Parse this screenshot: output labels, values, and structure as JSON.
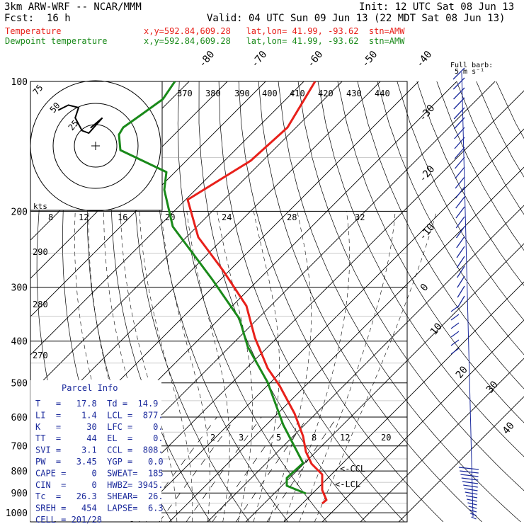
{
  "header": {
    "title": "3km ARW-WRF -- NCAR/MMM",
    "init": "Init: 12 UTC Sat 08 Jun 13",
    "fcst_label": "Fcst:",
    "fcst_value": "16 h",
    "valid": "Valid: 04 UTC Sun 09 Jun 13 (22 MDT Sat 08 Jun 13)"
  },
  "legend": [
    {
      "name": "Temperature",
      "loc": "x,y=592.84,609.28   lat,lon= 41.99, -93.62  stn=AMW",
      "color": "#e8201a"
    },
    {
      "name": "Dewpoint temperature",
      "loc": "x,y=592.84,609.28   lat,lon= 41.99, -93.62  stn=AMW",
      "color": "#1a8a1a"
    }
  ],
  "barb_key": {
    "line1": "Full barb:",
    "line2": "5 m s⁻¹"
  },
  "parcel_info": {
    "title": "Parcel Info",
    "rows": [
      "T   =   17.8  Td =  14.9",
      "LI  =    1.4  LCL =  877.",
      "K   =     30  LFC =    0.",
      "TT  =     44  EL  =    0.",
      "SVI =    3.1  CCL =  808.",
      "PW  =   3.45  YGP =   0.0",
      "CAPE =     0  SWEAT=  185",
      "CIN  =     0  HWBZ= 3945.",
      "Tc  =   26.3  SHEAR=  26.",
      "SREH =   454  LAPSE=  6.3",
      "CELL = 201/28"
    ]
  },
  "markers": {
    "ccl": "<-CCL",
    "lcl": "<-LCL"
  },
  "hodograph": {
    "speed_unit": "kts",
    "ring_labels": [
      "25",
      "50",
      "75"
    ]
  },
  "chart_data": {
    "type": "line",
    "subtype": "skew-T log-P diagram",
    "pressure_axis_hPa": [
      100,
      200,
      300,
      400,
      500,
      600,
      700,
      800,
      900,
      1000
    ],
    "pressure_tick_labels": [
      "100",
      "200",
      "300",
      "400",
      "500",
      "600",
      "700",
      "800",
      "900",
      "1000"
    ],
    "isotherm_labels_C": [
      "-80",
      "-70",
      "-60",
      "-50",
      "-40",
      "-30",
      "-20",
      "-10",
      "0",
      "10",
      "20",
      "30",
      "40"
    ],
    "theta_labels_K": [
      "370",
      "380",
      "390",
      "400",
      "410",
      "420",
      "430",
      "440"
    ],
    "dry_adiabat_labels_K": [
      "290",
      "280",
      "270"
    ],
    "wet_bulb_labels_C": [
      "8",
      "12",
      "16",
      "20",
      "24",
      "28",
      "32"
    ],
    "mixing_ratio_labels_gkg": [
      "2",
      "3",
      "5",
      "8",
      "12",
      "20"
    ],
    "series": [
      {
        "name": "Temperature",
        "color": "#e8201a",
        "points": [
          [
            100,
            -61
          ],
          [
            150,
            -56
          ],
          [
            180,
            -58
          ],
          [
            200,
            -55
          ],
          [
            250,
            -47
          ],
          [
            300,
            -38
          ],
          [
            350,
            -26
          ],
          [
            400,
            -18
          ],
          [
            450,
            -12
          ],
          [
            500,
            -8
          ],
          [
            600,
            1
          ],
          [
            650,
            5
          ],
          [
            700,
            7
          ],
          [
            750,
            10
          ],
          [
            800,
            13
          ],
          [
            850,
            14.5
          ],
          [
            900,
            16
          ],
          [
            950,
            17.8
          ]
        ]
      },
      {
        "name": "Dewpoint temperature",
        "color": "#1a8a1a",
        "points": [
          [
            100,
            -70
          ],
          [
            120,
            -69
          ],
          [
            140,
            -76
          ],
          [
            150,
            -80
          ],
          [
            170,
            -74
          ],
          [
            200,
            -67
          ],
          [
            250,
            -55
          ],
          [
            300,
            -43
          ],
          [
            350,
            -33
          ],
          [
            400,
            -24
          ],
          [
            500,
            -14
          ],
          [
            600,
            -5
          ],
          [
            700,
            2
          ],
          [
            780,
            6
          ],
          [
            820,
            8
          ],
          [
            860,
            2
          ],
          [
            900,
            8
          ],
          [
            950,
            14.9
          ]
        ]
      }
    ],
    "hodograph_trace": [
      [
        -22,
        28
      ],
      [
        -16,
        32
      ],
      [
        -10,
        30
      ],
      [
        -12,
        22
      ],
      [
        -8,
        12
      ],
      [
        -4,
        10
      ],
      [
        4,
        22
      ],
      [
        -3,
        14
      ]
    ],
    "wind_profile": [
      {
        "p": 100,
        "spd_ms": 12,
        "dir_deg": 270
      },
      {
        "p": 130,
        "spd_ms": 27,
        "dir_deg": 280
      },
      {
        "p": 160,
        "spd_ms": 30,
        "dir_deg": 285
      },
      {
        "p": 200,
        "spd_ms": 30,
        "dir_deg": 290
      },
      {
        "p": 250,
        "spd_ms": 25,
        "dir_deg": 295
      },
      {
        "p": 300,
        "spd_ms": 22,
        "dir_deg": 300
      },
      {
        "p": 350,
        "spd_ms": 20,
        "dir_deg": 300
      },
      {
        "p": 400,
        "spd_ms": 15,
        "dir_deg": 300
      },
      {
        "p": 500,
        "spd_ms": 12,
        "dir_deg": 295
      },
      {
        "p": 600,
        "spd_ms": 10,
        "dir_deg": 290
      },
      {
        "p": 700,
        "spd_ms": 8,
        "dir_deg": 280
      },
      {
        "p": 800,
        "spd_ms": 10,
        "dir_deg": 250
      },
      {
        "p": 850,
        "spd_ms": 12,
        "dir_deg": 220
      },
      {
        "p": 900,
        "spd_ms": 10,
        "dir_deg": 200
      },
      {
        "p": 950,
        "spd_ms": 7,
        "dir_deg": 180
      }
    ],
    "grid": true
  }
}
